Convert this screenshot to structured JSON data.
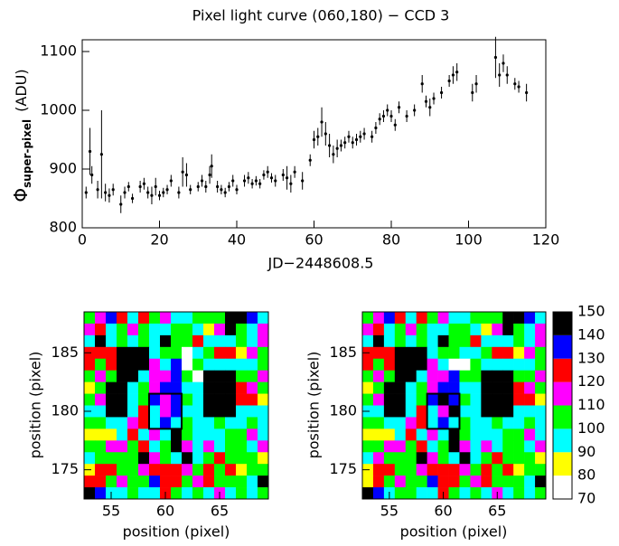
{
  "chart_data": [
    {
      "type": "scatter",
      "title": "Pixel light curve (060,180) − CCD 3",
      "xlabel": "JD−2448608.5",
      "ylabel": {
        "symbol": "Φ",
        "subscript": "super-pixel",
        "unit": "(ADU)"
      },
      "color": "#000000",
      "xlim": [
        0,
        120
      ],
      "ylim": [
        800,
        1120
      ],
      "xticks": [
        0,
        20,
        40,
        60,
        80,
        100,
        120
      ],
      "yticks": [
        800,
        900,
        1000,
        1100
      ],
      "x": [
        1,
        2,
        2.5,
        4,
        5,
        6,
        7,
        8,
        10,
        11,
        12,
        13,
        15,
        16,
        17,
        18,
        19,
        20,
        21,
        22,
        23,
        25,
        26,
        27,
        28,
        30,
        31,
        32,
        33,
        33.5,
        35,
        36,
        37,
        38,
        39,
        40,
        42,
        43,
        44,
        45,
        46,
        47,
        48,
        49,
        50,
        52,
        53,
        54,
        55,
        57,
        59,
        60,
        61,
        62,
        63,
        64,
        65,
        66,
        67,
        68,
        69,
        70,
        71,
        72,
        73,
        75,
        76,
        77,
        78,
        79,
        80,
        81,
        82,
        84,
        86,
        88,
        89,
        90,
        91,
        93,
        95,
        96,
        97,
        101,
        102,
        107,
        108,
        109,
        110,
        112,
        113,
        115
      ],
      "values": [
        860,
        930,
        890,
        865,
        925,
        860,
        855,
        865,
        840,
        860,
        870,
        850,
        870,
        875,
        860,
        855,
        870,
        855,
        860,
        865,
        880,
        860,
        895,
        890,
        865,
        870,
        880,
        870,
        890,
        905,
        870,
        865,
        860,
        870,
        880,
        865,
        880,
        885,
        875,
        880,
        875,
        890,
        895,
        885,
        880,
        890,
        885,
        875,
        895,
        880,
        915,
        950,
        955,
        980,
        960,
        940,
        925,
        935,
        940,
        945,
        955,
        945,
        950,
        955,
        960,
        955,
        970,
        985,
        990,
        1000,
        990,
        975,
        1005,
        990,
        1000,
        1045,
        1015,
        1005,
        1020,
        1030,
        1050,
        1060,
        1065,
        1030,
        1045,
        1090,
        1060,
        1080,
        1060,
        1045,
        1040,
        1030
      ],
      "errors": [
        10,
        40,
        15,
        15,
        75,
        15,
        12,
        10,
        15,
        10,
        8,
        8,
        10,
        10,
        10,
        15,
        15,
        8,
        8,
        8,
        10,
        10,
        25,
        20,
        8,
        8,
        10,
        10,
        15,
        20,
        10,
        8,
        8,
        8,
        10,
        8,
        10,
        10,
        8,
        8,
        8,
        8,
        10,
        8,
        10,
        10,
        20,
        15,
        10,
        15,
        10,
        15,
        15,
        25,
        20,
        20,
        15,
        15,
        10,
        10,
        10,
        10,
        10,
        10,
        10,
        10,
        10,
        10,
        10,
        10,
        10,
        10,
        10,
        10,
        10,
        15,
        10,
        15,
        10,
        10,
        10,
        15,
        15,
        15,
        15,
        35,
        20,
        15,
        15,
        10,
        10,
        15
      ]
    },
    {
      "type": "heatmap",
      "xlabel": "position (pixel)",
      "ylabel": "position (pixel)",
      "xlim": [
        52.5,
        69.5
      ],
      "ylim": [
        172.5,
        188.5
      ],
      "xticks": [
        55,
        60,
        65
      ],
      "yticks": [
        175,
        180,
        185
      ],
      "levels": [
        70,
        80,
        90,
        100,
        110,
        120,
        130,
        140,
        150
      ],
      "colors": [
        "#ffffff",
        "#ffff00",
        "#00ffff",
        "#00ff00",
        "#ff00ff",
        "#ff0000",
        "#0000ff",
        "#000000"
      ],
      "box": {
        "x": [
          58.5,
          61.5
        ],
        "y": [
          178.5,
          181.5
        ]
      },
      "colorbar": false,
      "values": [
        [
          105,
          115,
          135,
          125,
          95,
          125,
          105,
          115,
          95,
          95,
          105,
          105,
          105,
          145,
          145,
          135,
          95
        ],
        [
          115,
          125,
          95,
          105,
          115,
          105,
          95,
          95,
          105,
          105,
          95,
          85,
          115,
          145,
          105,
          95,
          115
        ],
        [
          95,
          145,
          95,
          105,
          95,
          105,
          95,
          145,
          105,
          105,
          125,
          95,
          95,
          95,
          105,
          95,
          115
        ],
        [
          125,
          125,
          125,
          145,
          145,
          145,
          95,
          105,
          105,
          75,
          95,
          105,
          125,
          125,
          85,
          115,
          105
        ],
        [
          125,
          105,
          125,
          145,
          145,
          145,
          115,
          95,
          135,
          75,
          105,
          95,
          95,
          95,
          95,
          95,
          105
        ],
        [
          105,
          115,
          105,
          145,
          145,
          95,
          115,
          115,
          135,
          105,
          75,
          145,
          145,
          145,
          105,
          105,
          115
        ],
        [
          85,
          105,
          145,
          145,
          95,
          105,
          115,
          135,
          135,
          95,
          95,
          145,
          145,
          145,
          125,
          115,
          105
        ],
        [
          105,
          115,
          145,
          145,
          95,
          105,
          135,
          115,
          135,
          105,
          95,
          145,
          145,
          145,
          125,
          125,
          85
        ],
        [
          95,
          95,
          145,
          145,
          95,
          125,
          95,
          115,
          135,
          95,
          95,
          145,
          145,
          145,
          95,
          95,
          95
        ],
        [
          105,
          105,
          95,
          95,
          115,
          125,
          95,
          135,
          95,
          105,
          95,
          95,
          105,
          95,
          95,
          105,
          95
        ],
        [
          85,
          85,
          85,
          95,
          125,
          95,
          115,
          95,
          145,
          105,
          95,
          95,
          95,
          105,
          105,
          115,
          95
        ],
        [
          105,
          105,
          115,
          115,
          105,
          125,
          95,
          105,
          145,
          115,
          95,
          115,
          95,
          105,
          105,
          95,
          115
        ],
        [
          95,
          105,
          105,
          105,
          105,
          145,
          115,
          105,
          95,
          145,
          95,
          105,
          125,
          105,
          105,
          105,
          85
        ],
        [
          85,
          125,
          125,
          105,
          105,
          115,
          125,
          125,
          125,
          115,
          105,
          125,
          105,
          125,
          85,
          105,
          105
        ],
        [
          125,
          125,
          105,
          115,
          105,
          105,
          135,
          125,
          125,
          105,
          115,
          125,
          105,
          105,
          105,
          95,
          145
        ],
        [
          145,
          135,
          95,
          95,
          105,
          95,
          95,
          125,
          105,
          95,
          105,
          95,
          115,
          95,
          105,
          95,
          105
        ]
      ]
    },
    {
      "type": "heatmap",
      "xlabel": "position (pixel)",
      "ylabel": "position (pixel)",
      "xlim": [
        52.5,
        69.5
      ],
      "ylim": [
        172.5,
        188.5
      ],
      "xticks": [
        55,
        60,
        65
      ],
      "yticks": [
        175,
        180,
        185
      ],
      "levels": [
        70,
        80,
        90,
        100,
        110,
        120,
        130,
        140,
        150
      ],
      "colors": [
        "#ffffff",
        "#ffff00",
        "#00ffff",
        "#00ff00",
        "#ff00ff",
        "#ff0000",
        "#0000ff",
        "#000000"
      ],
      "box": {
        "x": [
          58.5,
          61.5
        ],
        "y": [
          178.5,
          181.5
        ]
      },
      "colorbar": true,
      "values": [
        [
          105,
          115,
          135,
          125,
          95,
          125,
          105,
          115,
          95,
          95,
          105,
          105,
          105,
          145,
          145,
          135,
          95
        ],
        [
          115,
          125,
          95,
          105,
          115,
          105,
          95,
          95,
          105,
          105,
          95,
          85,
          115,
          145,
          105,
          95,
          115
        ],
        [
          95,
          145,
          95,
          105,
          95,
          105,
          95,
          145,
          105,
          105,
          125,
          95,
          95,
          95,
          105,
          95,
          115
        ],
        [
          125,
          125,
          125,
          145,
          145,
          145,
          95,
          105,
          105,
          95,
          95,
          105,
          125,
          125,
          85,
          115,
          105
        ],
        [
          125,
          105,
          125,
          145,
          145,
          145,
          115,
          95,
          75,
          75,
          105,
          95,
          95,
          95,
          95,
          95,
          105
        ],
        [
          105,
          115,
          105,
          145,
          145,
          95,
          115,
          115,
          135,
          105,
          105,
          145,
          145,
          145,
          105,
          105,
          115
        ],
        [
          85,
          105,
          145,
          145,
          95,
          105,
          115,
          135,
          135,
          95,
          95,
          145,
          145,
          145,
          125,
          115,
          105
        ],
        [
          105,
          115,
          145,
          145,
          95,
          105,
          135,
          145,
          135,
          105,
          95,
          145,
          145,
          145,
          125,
          125,
          85
        ],
        [
          95,
          95,
          145,
          145,
          95,
          125,
          95,
          115,
          145,
          95,
          95,
          145,
          145,
          145,
          95,
          95,
          95
        ],
        [
          105,
          105,
          95,
          95,
          115,
          125,
          95,
          135,
          95,
          105,
          95,
          95,
          105,
          95,
          95,
          105,
          95
        ],
        [
          85,
          85,
          85,
          95,
          125,
          95,
          115,
          95,
          145,
          105,
          95,
          95,
          95,
          105,
          105,
          115,
          95
        ],
        [
          105,
          105,
          115,
          115,
          105,
          125,
          95,
          105,
          145,
          115,
          95,
          115,
          95,
          105,
          105,
          95,
          115
        ],
        [
          95,
          115,
          105,
          105,
          105,
          145,
          115,
          105,
          95,
          145,
          95,
          105,
          125,
          105,
          105,
          105,
          85
        ],
        [
          85,
          125,
          125,
          105,
          105,
          115,
          125,
          125,
          125,
          115,
          105,
          125,
          105,
          125,
          85,
          105,
          105
        ],
        [
          85,
          125,
          105,
          115,
          105,
          105,
          135,
          125,
          125,
          105,
          115,
          125,
          105,
          105,
          105,
          95,
          145
        ],
        [
          145,
          135,
          95,
          105,
          105,
          95,
          95,
          125,
          105,
          95,
          105,
          95,
          115,
          95,
          105,
          95,
          105
        ]
      ]
    }
  ]
}
